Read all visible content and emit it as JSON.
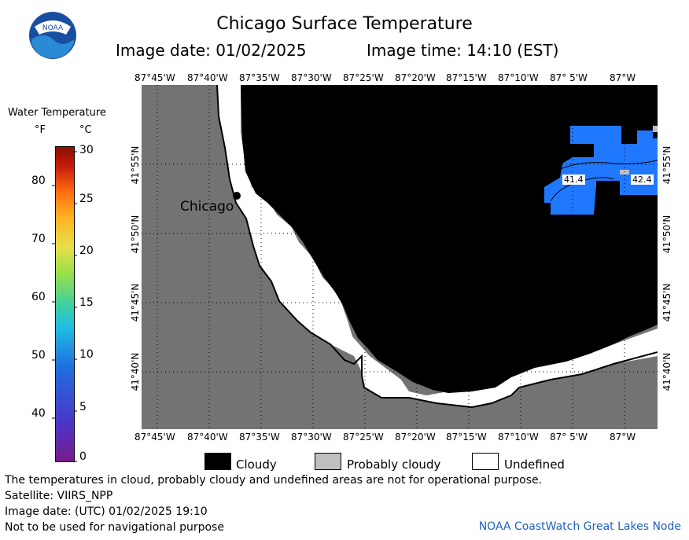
{
  "header": {
    "title": "Chicago Surface Temperature",
    "date": "Image date: 01/02/2025",
    "time": "Image time: 14:10 (EST)",
    "logo_text": "NOAA"
  },
  "colorbar": {
    "title": "Water Temperature",
    "unit_f": "°F",
    "unit_c": "°C",
    "f_ticks": [
      "80",
      "70",
      "60",
      "50",
      "40"
    ],
    "c_ticks": [
      "30",
      "25",
      "20",
      "15",
      "10",
      "5",
      "0"
    ]
  },
  "axes": {
    "lon_labels": [
      "87°45'W",
      "87°40'W",
      "87°35'W",
      "87°30'W",
      "87°25'W",
      "87°20'W",
      "87°15'W",
      "87°10'W",
      "87° 5'W",
      "87°W"
    ],
    "lat_labels": [
      "41°55'N",
      "41°50'N",
      "41°45'N",
      "41°40'N"
    ]
  },
  "map": {
    "city_label": "Chicago",
    "contour_labels": [
      "41.4",
      "42.4"
    ],
    "colors": {
      "land": "#737373",
      "cloudy": "#000000",
      "undefined": "#ffffff",
      "probably_cloudy": "#bfbfbf",
      "water_warm": "#1f78ff"
    }
  },
  "legend": {
    "cloudy": "Cloudy",
    "probably_cloudy": "Probably cloudy",
    "undefined": "Undefined"
  },
  "footer": {
    "line1": "The temperatures in cloud, probably cloudy and undefined areas are not for operational purpose.",
    "line2": "Satellite: VIIRS_NPP",
    "line3": "Image date: (UTC) 01/02/2025  19:10",
    "line4": "Not to be used for navigational purpose",
    "credit": "NOAA CoastWatch Great Lakes Node"
  }
}
